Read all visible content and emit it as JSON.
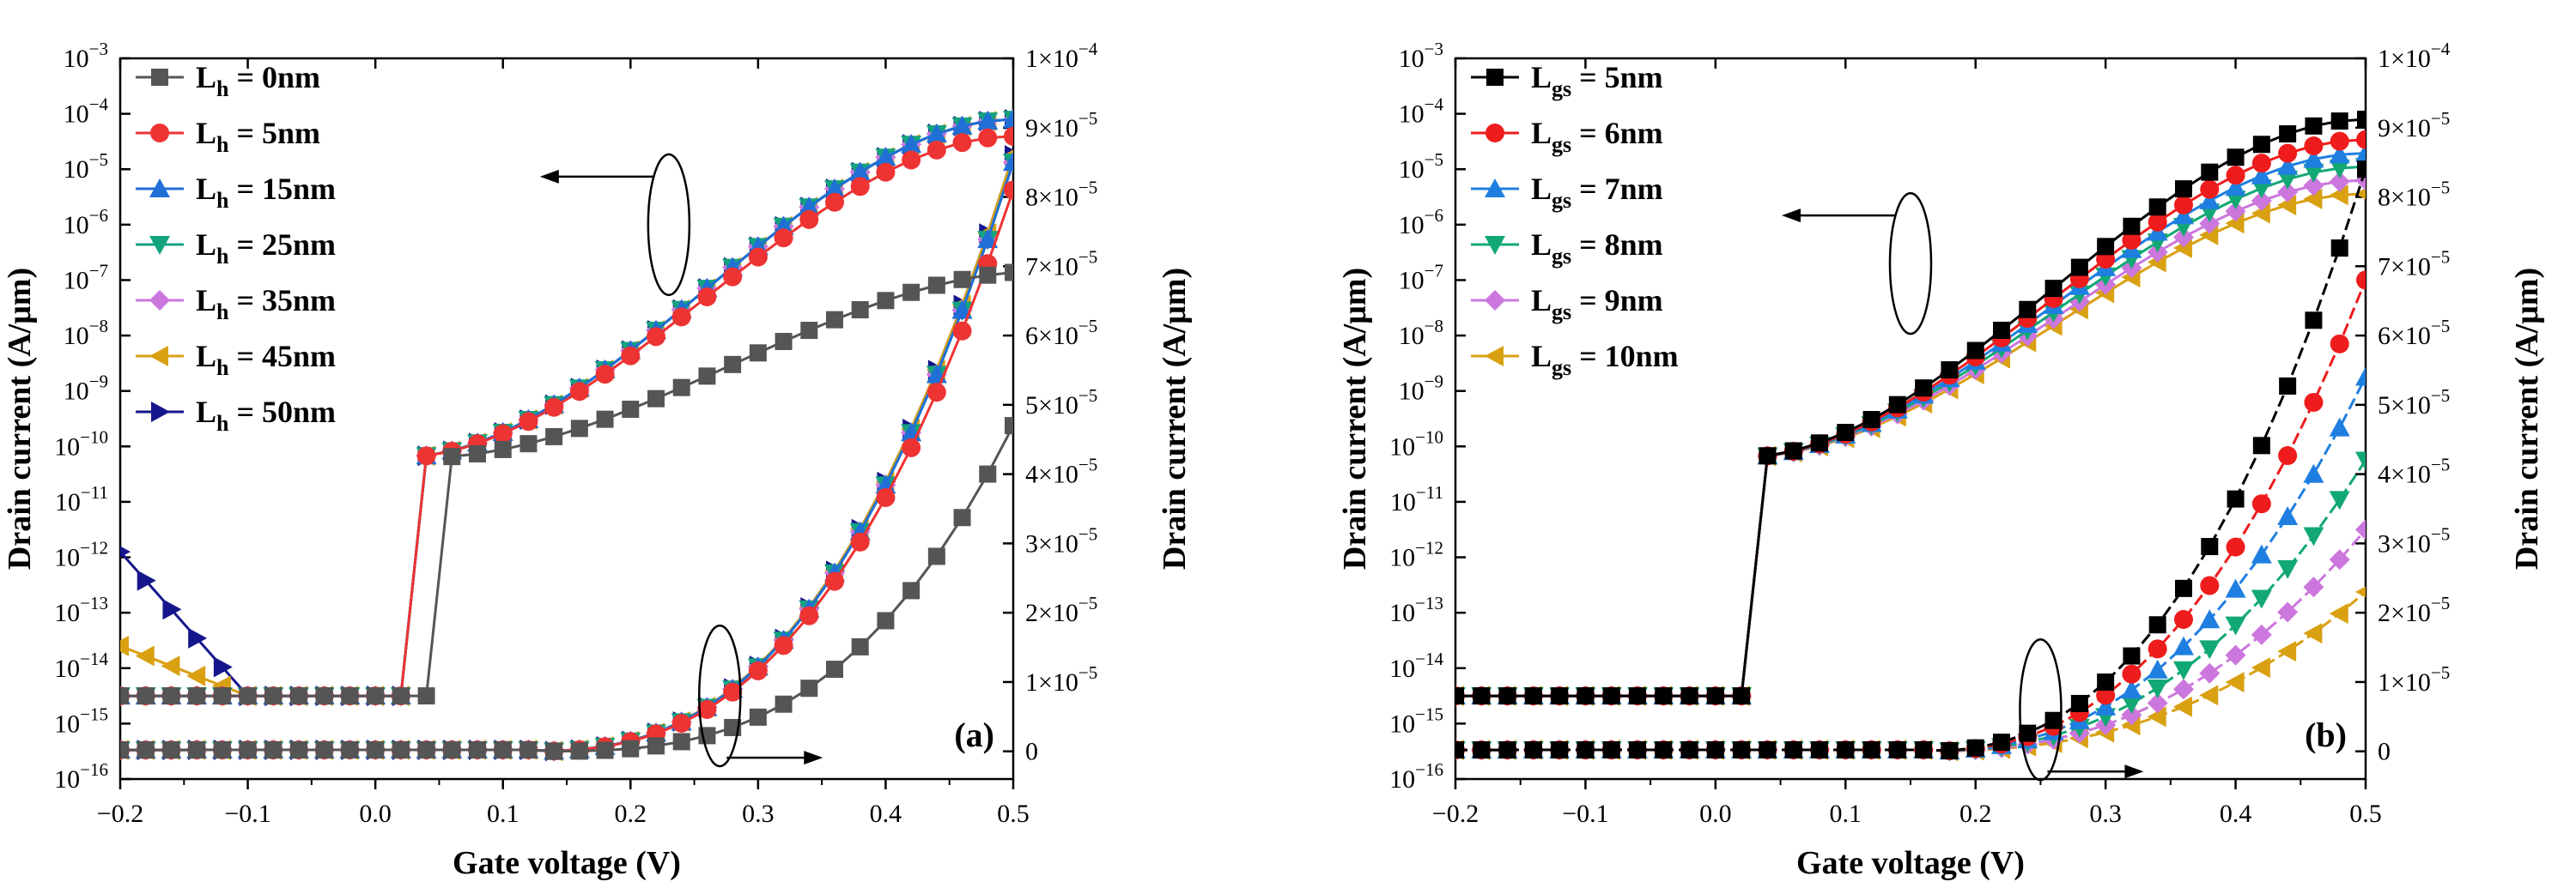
{
  "chart_data": [
    {
      "type": "line",
      "panel": "(a)",
      "xlabel": "Gate voltage (V)",
      "ylabel_left": "Drain current (A/μm)",
      "ylabel_right": "Drain current (A/μm)",
      "xlim": [
        -0.2,
        0.5
      ],
      "xticks": [
        "−0.2",
        "−0.1",
        "0.0",
        "0.1",
        "0.2",
        "0.3",
        "0.4",
        "0.5"
      ],
      "ylim_left_log10": [
        -16,
        -3
      ],
      "ylim_right": [
        -4e-06,
        0.0001
      ],
      "yticks_left": [
        {
          "base": "10",
          "exp": "-3"
        },
        {
          "base": "10",
          "exp": "-4"
        },
        {
          "base": "10",
          "exp": "-5"
        },
        {
          "base": "10",
          "exp": "-6"
        },
        {
          "base": "10",
          "exp": "-7"
        },
        {
          "base": "10",
          "exp": "-8"
        },
        {
          "base": "10",
          "exp": "-9"
        },
        {
          "base": "10",
          "exp": "-10"
        },
        {
          "base": "10",
          "exp": "-11"
        },
        {
          "base": "10",
          "exp": "-12"
        },
        {
          "base": "10",
          "exp": "-13"
        },
        {
          "base": "10",
          "exp": "-14"
        },
        {
          "base": "10",
          "exp": "-15"
        },
        {
          "base": "10",
          "exp": "-16"
        }
      ],
      "yticks_right": [
        {
          "mant": "0",
          "exp": ""
        },
        {
          "mant": "1×10",
          "exp": "-5"
        },
        {
          "mant": "2×10",
          "exp": "-5"
        },
        {
          "mant": "3×10",
          "exp": "-5"
        },
        {
          "mant": "4×10",
          "exp": "-5"
        },
        {
          "mant": "5×10",
          "exp": "-5"
        },
        {
          "mant": "6×10",
          "exp": "-5"
        },
        {
          "mant": "7×10",
          "exp": "-5"
        },
        {
          "mant": "8×10",
          "exp": "-5"
        },
        {
          "mant": "9×10",
          "exp": "-5"
        },
        {
          "mant": "1×10",
          "exp": "-4"
        }
      ],
      "annotations": [
        {
          "text": "log-scale curves → left axis",
          "ellipse_at": {
            "x": 0.23,
            "y_log10": -6.0
          },
          "arrow": "left"
        },
        {
          "text": "linear-scale curves → right axis",
          "ellipse_at": {
            "x": 0.27,
            "y_lin": 8e-06
          },
          "arrow": "right"
        }
      ],
      "series": [
        {
          "name": "L_h = 0nm",
          "base": "L",
          "sub": "h",
          "suffix": " = 0nm",
          "color": "#555555",
          "marker": "square",
          "offV": 0.04,
          "ileak_log10": -14.5,
          "lead": 0,
          "on_scale": 0.55,
          "ion_log10": -4.3,
          "lin_max": 4.7e-05,
          "lin_v0": 0.13,
          "lin_p": 2.9
        },
        {
          "name": "L_h = 5nm",
          "base": "L",
          "sub": "h",
          "suffix": " = 5nm",
          "color": "#ee3333",
          "marker": "circle",
          "offV": 0.02,
          "ileak_log10": -14.5,
          "lead": 0,
          "on_scale": 0.95,
          "ion_log10": -4.05,
          "lin_max": 8.1e-05,
          "lin_v0": 0.12,
          "lin_p": 2.6
        },
        {
          "name": "L_h = 15nm",
          "base": "L",
          "sub": "h",
          "suffix": " = 15nm",
          "color": "#1f6fd6",
          "marker": "triangle-up",
          "offV": 0.02,
          "ileak_log10": -14.5,
          "lead": 0,
          "on_scale": 1.0,
          "ion_log10": -4.05,
          "lin_max": 8.5e-05,
          "lin_v0": 0.12,
          "lin_p": 2.6
        },
        {
          "name": "L_h = 25nm",
          "base": "L",
          "sub": "h",
          "suffix": " = 25nm",
          "color": "#14a37f",
          "marker": "triangle-down",
          "offV": 0.02,
          "ileak_log10": -14.5,
          "lead": 0,
          "on_scale": 1.0,
          "ion_log10": -4.05,
          "lin_max": 8.5e-05,
          "lin_v0": 0.12,
          "lin_p": 2.6
        },
        {
          "name": "L_h = 35nm",
          "base": "L",
          "sub": "h",
          "suffix": " = 35nm",
          "color": "#cc77dd",
          "marker": "diamond",
          "offV": 0.02,
          "ileak_log10": -14.5,
          "lead": 0,
          "on_scale": 1.0,
          "ion_log10": -4.05,
          "lin_max": 8.5e-05,
          "lin_v0": 0.12,
          "lin_p": 2.6
        },
        {
          "name": "L_h = 45nm",
          "base": "L",
          "sub": "h",
          "suffix": " = 45nm",
          "color": "#d9a012",
          "marker": "triangle-left",
          "offV": 0.02,
          "ileak_log10": -14.5,
          "lead": 0.9,
          "on_scale": 1.0,
          "ion_log10": -4.05,
          "lin_max": 8.6e-05,
          "lin_v0": 0.12,
          "lin_p": 2.6
        },
        {
          "name": "L_h = 50nm",
          "base": "L",
          "sub": "h",
          "suffix": " = 50nm",
          "color": "#16168c",
          "marker": "triangle-right",
          "offV": 0.02,
          "ileak_log10": -14.5,
          "lead": 2.6,
          "on_scale": 1.0,
          "ion_log10": -4.05,
          "lin_max": 8.6e-05,
          "lin_v0": 0.12,
          "lin_p": 2.6
        }
      ]
    },
    {
      "type": "line",
      "panel": "(b)",
      "xlabel": "Gate voltage (V)",
      "ylabel_left": "Drain current (A/μm)",
      "ylabel_right": "Drain current (A/μm)",
      "xlim": [
        -0.2,
        0.5
      ],
      "xticks": [
        "−0.2",
        "−0.1",
        "0.0",
        "0.1",
        "0.2",
        "0.3",
        "0.4",
        "0.5"
      ],
      "ylim_left_log10": [
        -16,
        -3
      ],
      "ylim_right": [
        -4e-06,
        0.0001
      ],
      "yticks_left": [
        {
          "base": "10",
          "exp": "-3"
        },
        {
          "base": "10",
          "exp": "-4"
        },
        {
          "base": "10",
          "exp": "-5"
        },
        {
          "base": "10",
          "exp": "-6"
        },
        {
          "base": "10",
          "exp": "-7"
        },
        {
          "base": "10",
          "exp": "-8"
        },
        {
          "base": "10",
          "exp": "-9"
        },
        {
          "base": "10",
          "exp": "-10"
        },
        {
          "base": "10",
          "exp": "-11"
        },
        {
          "base": "10",
          "exp": "-12"
        },
        {
          "base": "10",
          "exp": "-13"
        },
        {
          "base": "10",
          "exp": "-14"
        },
        {
          "base": "10",
          "exp": "-15"
        },
        {
          "base": "10",
          "exp": "-16"
        }
      ],
      "yticks_right": [
        {
          "mant": "0",
          "exp": ""
        },
        {
          "mant": "1×10",
          "exp": "-5"
        },
        {
          "mant": "2×10",
          "exp": "-5"
        },
        {
          "mant": "3×10",
          "exp": "-5"
        },
        {
          "mant": "4×10",
          "exp": "-5"
        },
        {
          "mant": "5×10",
          "exp": "-5"
        },
        {
          "mant": "6×10",
          "exp": "-5"
        },
        {
          "mant": "7×10",
          "exp": "-5"
        },
        {
          "mant": "8×10",
          "exp": "-5"
        },
        {
          "mant": "9×10",
          "exp": "-5"
        },
        {
          "mant": "1×10",
          "exp": "-4"
        }
      ],
      "annotations": [
        {
          "text": "log-scale curves → left axis",
          "ellipse_at": {
            "x": 0.15,
            "y_log10": -6.7
          },
          "arrow": "left"
        },
        {
          "text": "linear-scale curves → right axis",
          "ellipse_at": {
            "x": 0.25,
            "y_lin": 6e-06
          },
          "arrow": "right"
        }
      ],
      "series": [
        {
          "name": "L_gs = 5nm",
          "base": "L",
          "sub": "gs",
          "suffix": " = 5nm",
          "color": "#000000",
          "marker": "square",
          "offV": 0.02,
          "ileak_log10": -14.5,
          "lead": 0,
          "on_scale": 1.0,
          "ion_log10": -4.05,
          "lin_max": 8.4e-05,
          "lin_v0": 0.16,
          "lin_p": 2.4
        },
        {
          "name": "L_gs = 6nm",
          "base": "L",
          "sub": "gs",
          "suffix": " = 6nm",
          "color": "#ee1c1c",
          "marker": "circle",
          "offV": 0.02,
          "ileak_log10": -14.5,
          "lead": 0,
          "on_scale": 0.94,
          "ion_log10": -4.18,
          "lin_max": 6.8e-05,
          "lin_v0": 0.16,
          "lin_p": 2.4
        },
        {
          "name": "L_gs = 7nm",
          "base": "L",
          "sub": "gs",
          "suffix": " = 7nm",
          "color": "#1f7fe0",
          "marker": "triangle-up",
          "offV": 0.02,
          "ileak_log10": -14.5,
          "lead": 0,
          "on_scale": 0.9,
          "ion_log10": -4.3,
          "lin_max": 5.4e-05,
          "lin_v0": 0.16,
          "lin_p": 2.4
        },
        {
          "name": "L_gs = 8nm",
          "base": "L",
          "sub": "gs",
          "suffix": " = 8nm",
          "color": "#12a874",
          "marker": "triangle-down",
          "offV": 0.02,
          "ileak_log10": -14.5,
          "lead": 0,
          "on_scale": 0.86,
          "ion_log10": -4.42,
          "lin_max": 4.2e-05,
          "lin_v0": 0.16,
          "lin_p": 2.4
        },
        {
          "name": "L_gs = 9nm",
          "base": "L",
          "sub": "gs",
          "suffix": " = 9nm",
          "color": "#cc77dd",
          "marker": "diamond",
          "offV": 0.02,
          "ileak_log10": -14.5,
          "lead": 0,
          "on_scale": 0.82,
          "ion_log10": -4.55,
          "lin_max": 3.2e-05,
          "lin_v0": 0.16,
          "lin_p": 2.4
        },
        {
          "name": "L_gs = 10nm",
          "base": "L",
          "sub": "gs",
          "suffix": " = 10nm",
          "color": "#d9a012",
          "marker": "triangle-left",
          "offV": 0.02,
          "ileak_log10": -14.5,
          "lead": 0,
          "on_scale": 0.78,
          "ion_log10": -4.7,
          "lin_max": 2.3e-05,
          "lin_v0": 0.16,
          "lin_p": 2.4
        }
      ]
    }
  ]
}
